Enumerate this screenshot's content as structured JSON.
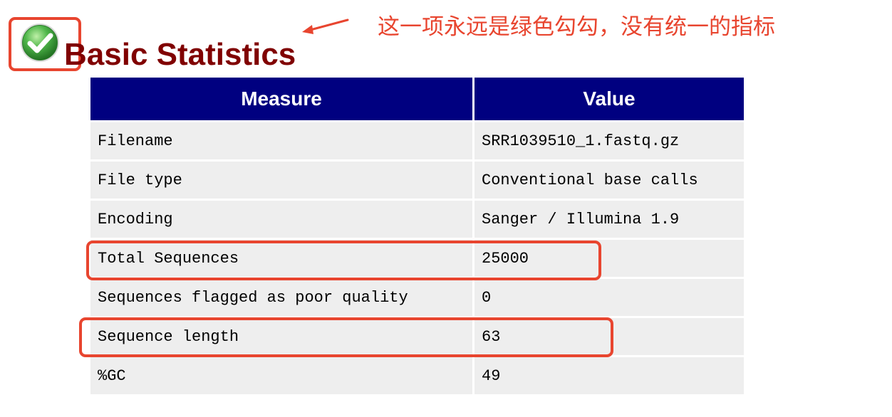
{
  "header": {
    "title": "Basic Statistics",
    "status_icon": "check-circle-icon",
    "status_color": "#3a9a3a"
  },
  "annotation": {
    "text": "这一项永远是绿色勾勾，没有统一的指标",
    "color": "#e8452f"
  },
  "table": {
    "header_color": "#000080",
    "columns": [
      "Measure",
      "Value"
    ],
    "rows": [
      {
        "measure": "Filename",
        "value": "SRR1039510_1.fastq.gz"
      },
      {
        "measure": "File type",
        "value": "Conventional base calls"
      },
      {
        "measure": "Encoding",
        "value": "Sanger / Illumina 1.9"
      },
      {
        "measure": "Total Sequences",
        "value": "25000"
      },
      {
        "measure": "Sequences flagged as poor quality",
        "value": "0"
      },
      {
        "measure": "Sequence length",
        "value": "63"
      },
      {
        "measure": "%GC",
        "value": "49"
      }
    ]
  }
}
